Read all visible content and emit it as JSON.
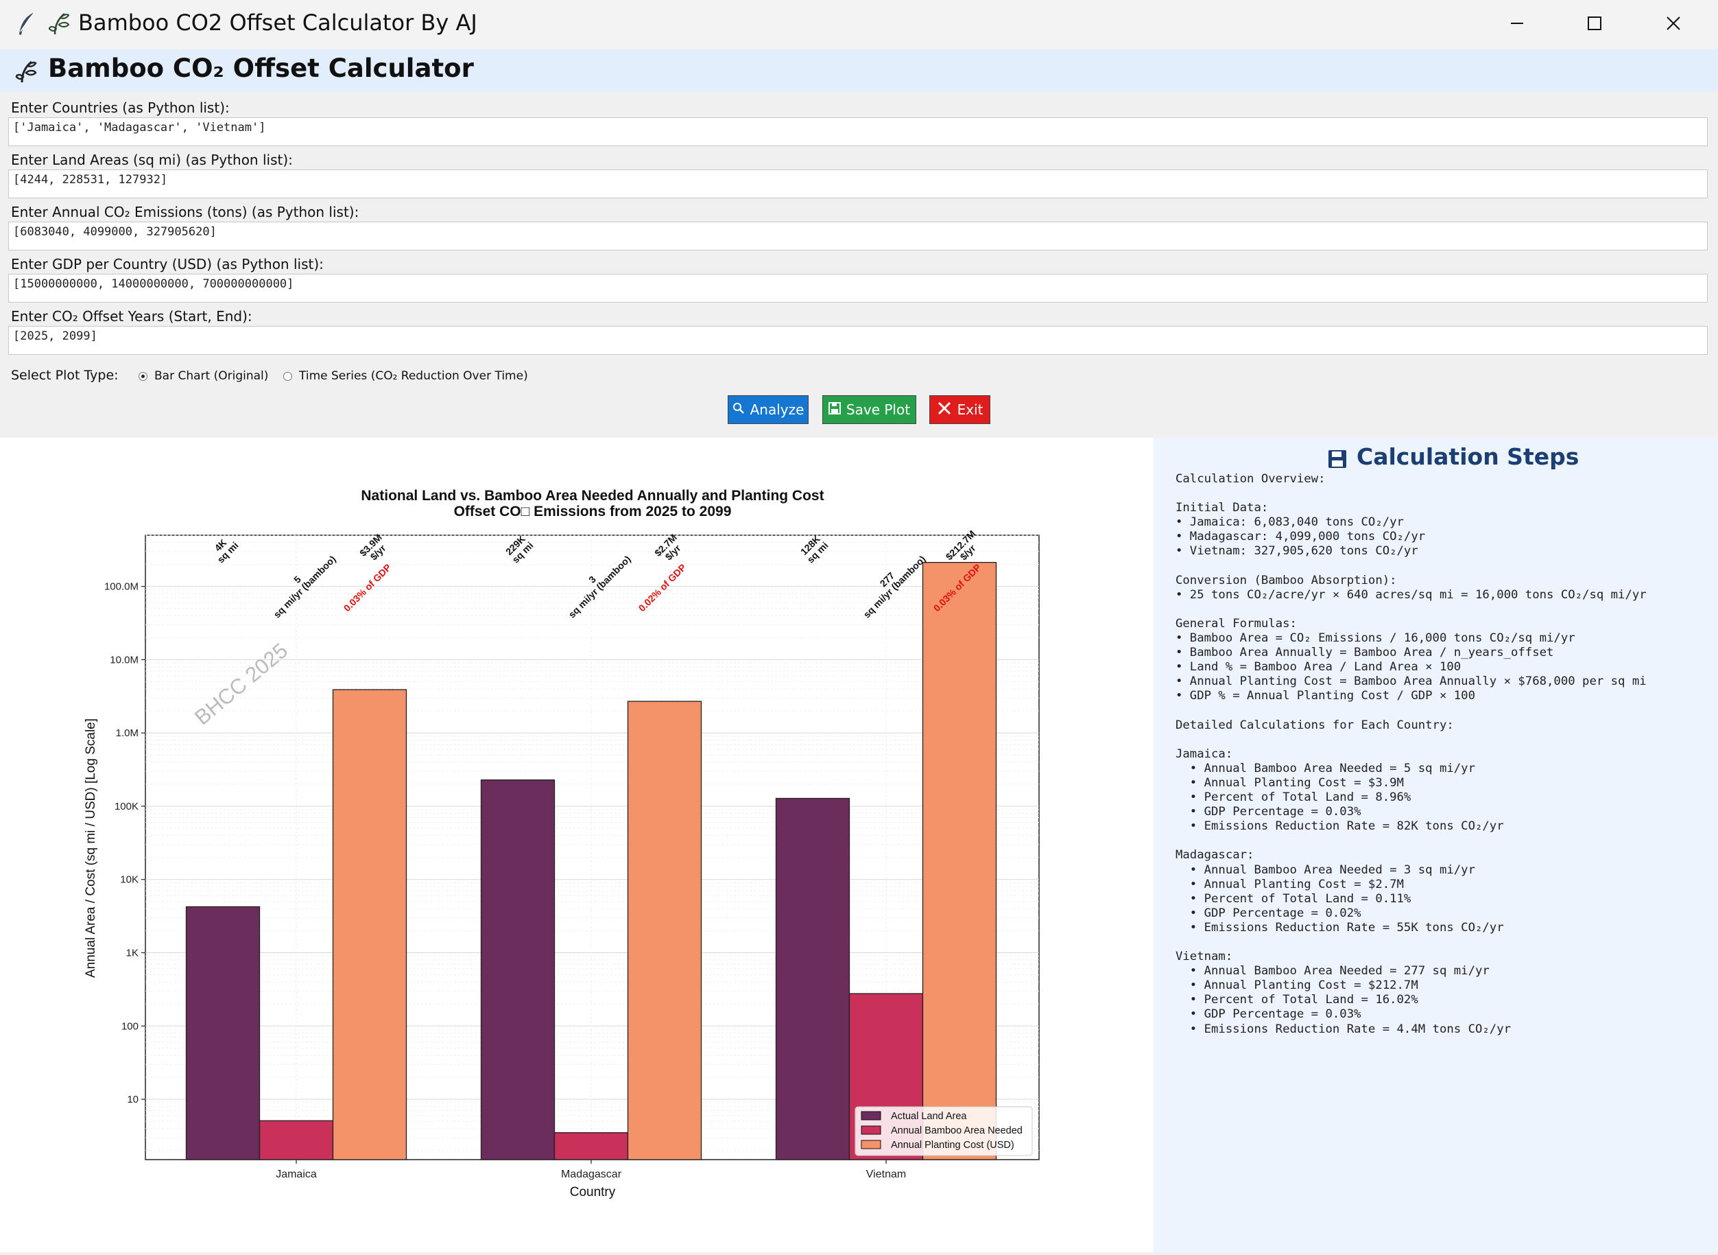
{
  "window": {
    "title": "Bamboo CO2 Offset Calculator By AJ",
    "controls": [
      "minimize",
      "maximize",
      "close"
    ]
  },
  "header": {
    "title": "Bamboo CO₂ Offset Calculator"
  },
  "form": {
    "countries": {
      "label": "Enter Countries (as Python list):",
      "value": "['Jamaica', 'Madagascar', 'Vietnam']"
    },
    "land_areas": {
      "label": "Enter Land Areas (sq mi) (as Python list):",
      "value": "[4244, 228531, 127932]"
    },
    "emissions": {
      "label": "Enter Annual CO₂ Emissions (tons) (as Python list):",
      "value": "[6083040, 4099000, 327905620]"
    },
    "gdp": {
      "label": "Enter GDP per Country (USD) (as Python list):",
      "value": "[15000000000, 14000000000, 700000000000]"
    },
    "years": {
      "label": "Enter CO₂ Offset Years (Start, End):",
      "value": "[2025, 2099]"
    },
    "plot_type": {
      "label": "Select Plot Type:",
      "options": [
        "Bar Chart (Original)",
        "Time Series (CO₂ Reduction Over Time)"
      ],
      "selected": "Bar Chart (Original)"
    }
  },
  "buttons": {
    "analyze": "Analyze",
    "save": "Save Plot",
    "exit": "Exit"
  },
  "colors": {
    "land": "#6b2d5c",
    "bamboo": "#c9305a",
    "cost": "#f4926a",
    "analyze": "#1577d1",
    "save": "#27a149",
    "exit": "#e01d1d",
    "steps_title": "#1b3f73"
  },
  "chart_data": {
    "type": "bar",
    "title": "National Land vs. Bamboo Area Needed Annually and Planting Cost",
    "subtitle": "Offset CO□ Emissions from 2025 to 2099",
    "xlabel": "Country",
    "ylabel": "Annual Area / Cost (sq mi / USD) [Log Scale]",
    "yscale": "log",
    "ylim": [
      1.5,
      500000000
    ],
    "yticks": [
      10,
      100,
      1000,
      10000,
      100000,
      1000000,
      10000000,
      100000000
    ],
    "ytick_labels": [
      "10",
      "100",
      "1K",
      "10K",
      "100K",
      "1.0M",
      "10.0M",
      "100.0M"
    ],
    "categories": [
      "Jamaica",
      "Madagascar",
      "Vietnam"
    ],
    "series": [
      {
        "name": "Actual Land Area",
        "values": [
          4244,
          228531,
          127932
        ]
      },
      {
        "name": "Annual Bamboo Area Needed",
        "values": [
          5.1,
          3.5,
          277
        ]
      },
      {
        "name": "Annual Planting Cost (USD)",
        "values": [
          3900000,
          2700000,
          212700000
        ]
      }
    ],
    "data_labels": [
      {
        "land": "4K\nsq mi",
        "bamboo": "5\nsq mi/yr (bamboo)",
        "cost": "$3.9M\n$/yr",
        "gdp": "0.03% of GDP"
      },
      {
        "land": "229K\nsq mi",
        "bamboo": "3\nsq mi/yr (bamboo)",
        "cost": "$2.7M\n$/yr",
        "gdp": "0.02% of GDP"
      },
      {
        "land": "128K\nsq mi",
        "bamboo": "277\nsq mi/yr (bamboo)",
        "cost": "$212.7M\n$/yr",
        "gdp": "0.03% of GDP"
      }
    ],
    "watermark": "BHCC 2025",
    "legend_position": "lower-right",
    "grid": true
  },
  "steps": {
    "title": "Calculation Steps",
    "lines": [
      "Calculation Overview:",
      "",
      "Initial Data:",
      "• Jamaica: 6,083,040 tons CO₂/yr",
      "• Madagascar: 4,099,000 tons CO₂/yr",
      "• Vietnam: 327,905,620 tons CO₂/yr",
      "",
      "Conversion (Bamboo Absorption):",
      "• 25 tons CO₂/acre/yr × 640 acres/sq mi = 16,000 tons CO₂/sq mi/yr",
      "",
      "General Formulas:",
      "• Bamboo Area = CO₂ Emissions / 16,000 tons CO₂/sq mi/yr",
      "• Bamboo Area Annually = Bamboo Area / n_years_offset",
      "• Land % = Bamboo Area / Land Area × 100",
      "• Annual Planting Cost = Bamboo Area Annually × $768,000 per sq mi",
      "• GDP % = Annual Planting Cost / GDP × 100",
      "",
      "Detailed Calculations for Each Country:",
      "",
      "Jamaica:",
      "  • Annual Bamboo Area Needed = 5 sq mi/yr",
      "  • Annual Planting Cost = $3.9M",
      "  • Percent of Total Land = 8.96%",
      "  • GDP Percentage = 0.03%",
      "  • Emissions Reduction Rate = 82K tons CO₂/yr",
      "",
      "Madagascar:",
      "  • Annual Bamboo Area Needed = 3 sq mi/yr",
      "  • Annual Planting Cost = $2.7M",
      "  • Percent of Total Land = 0.11%",
      "  • GDP Percentage = 0.02%",
      "  • Emissions Reduction Rate = 55K tons CO₂/yr",
      "",
      "Vietnam:",
      "  • Annual Bamboo Area Needed = 277 sq mi/yr",
      "  • Annual Planting Cost = $212.7M",
      "  • Percent of Total Land = 16.02%",
      "  • GDP Percentage = 0.03%",
      "  • Emissions Reduction Rate = 4.4M tons CO₂/yr"
    ]
  }
}
